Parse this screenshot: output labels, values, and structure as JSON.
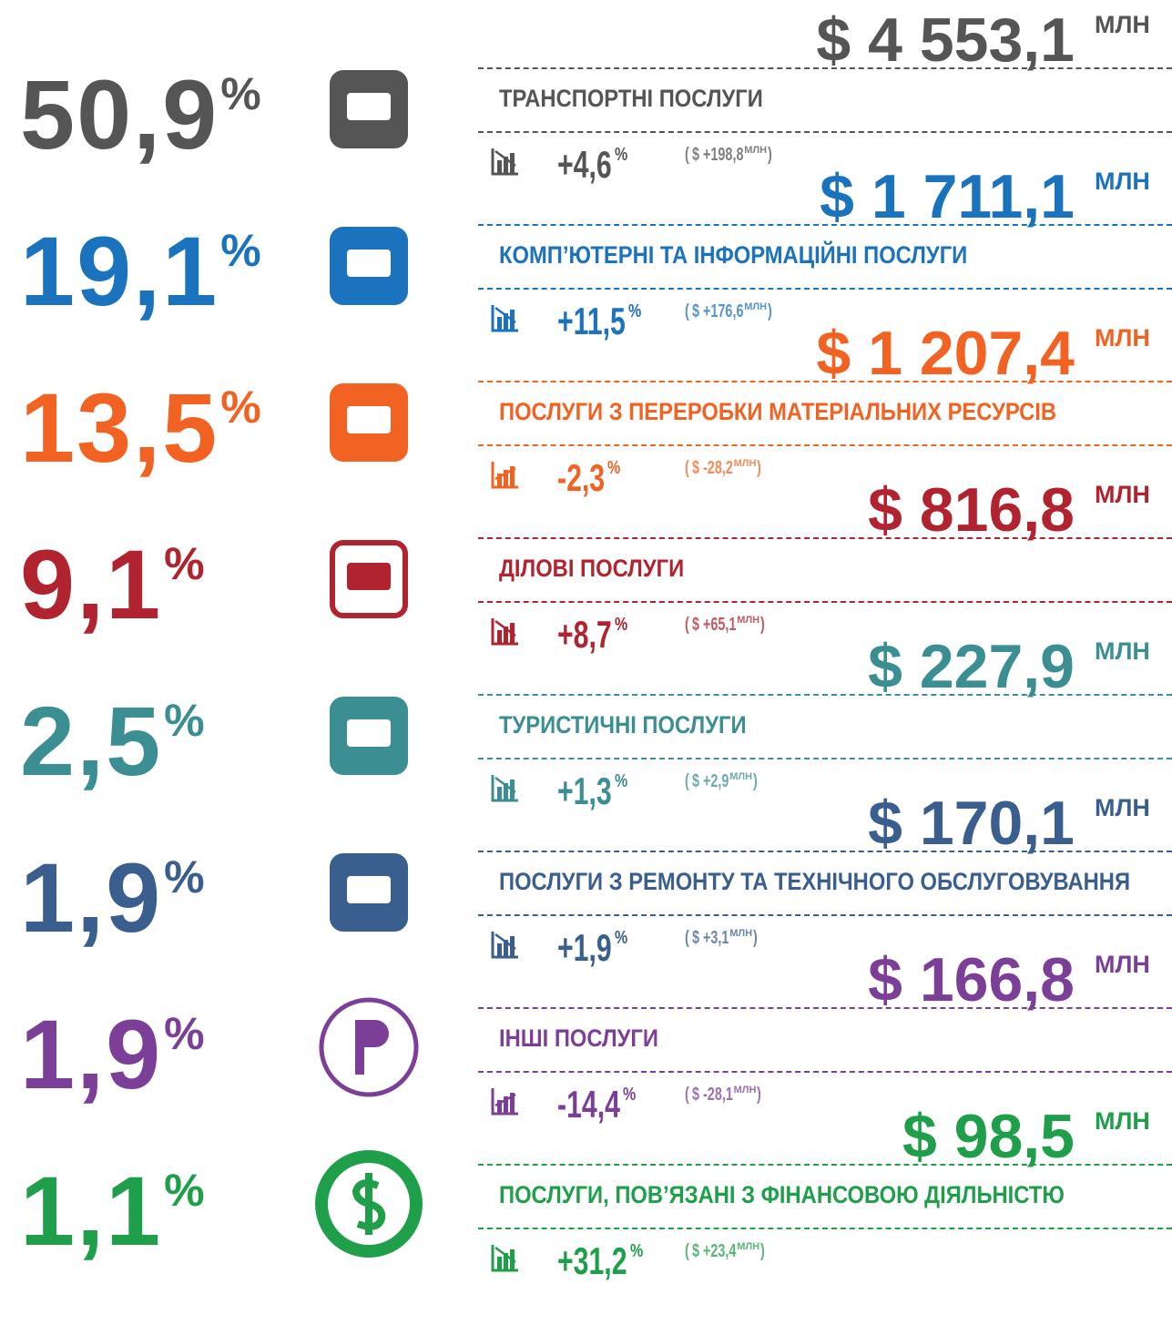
{
  "percent_sign": "%",
  "unit": "МЛН",
  "bracket_open": "(",
  "bracket_close": ")",
  "rows": [
    {
      "share": "50,9",
      "amount": "$ 4 553,1",
      "name": "ТРАНСПОРТНІ ПОСЛУГИ",
      "change": "+4,6",
      "change_abs": "$ +198,8",
      "color": "#555555",
      "trend": "up"
    },
    {
      "share": "19,1",
      "amount": "$ 1 711,1",
      "name": "КОМП’ЮТЕРНІ ТА ІНФОРМАЦІЙНІ ПОСЛУГИ",
      "change": "+11,5",
      "change_abs": "$ +176,6",
      "color": "#1b72bd",
      "trend": "up"
    },
    {
      "share": "13,5",
      "amount": "$ 1 207,4",
      "name": "ПОСЛУГИ З ПЕРЕРОБКИ МАТЕРІАЛЬНИХ РЕСУРСІВ",
      "change": "-2,3",
      "change_abs": "$ -28,2",
      "color": "#f26323",
      "trend": "down"
    },
    {
      "share": "9,1",
      "amount": "$ 816,8",
      "name": "ДІЛОВІ ПОСЛУГИ",
      "change": "+8,7",
      "change_abs": "$ +65,1",
      "color": "#b0232f",
      "trend": "up"
    },
    {
      "share": "2,5",
      "amount": "$ 227,9",
      "name": "ТУРИСТИЧНІ ПОСЛУГИ",
      "change": "+1,3",
      "change_abs": "$ +2,9",
      "color": "#3b8e91",
      "trend": "up"
    },
    {
      "share": "1,9",
      "amount": "$ 170,1",
      "name": "ПОСЛУГИ З РЕМОНТУ ТА ТЕХНІЧНОГО ОБСЛУГОВУВАННЯ",
      "change": "+1,9",
      "change_abs": "$ +3,1",
      "color": "#3a5e8e",
      "trend": "up"
    },
    {
      "share": "1,9",
      "amount": "$ 166,8",
      "name": "ІНШІ ПОСЛУГИ",
      "change": "-14,4",
      "change_abs": "$ -28,1",
      "color": "#7c3f98",
      "trend": "down"
    },
    {
      "share": "1,1",
      "amount": "$ 98,5",
      "name": "ПОСЛУГИ, ПОВ’ЯЗАНІ З ФІНАНСОВОЮ ДІЯЛЬНІСТЮ",
      "change": "+31,2",
      "change_abs": "$ +23,4",
      "color": "#1f9f4a",
      "trend": "up"
    }
  ]
}
